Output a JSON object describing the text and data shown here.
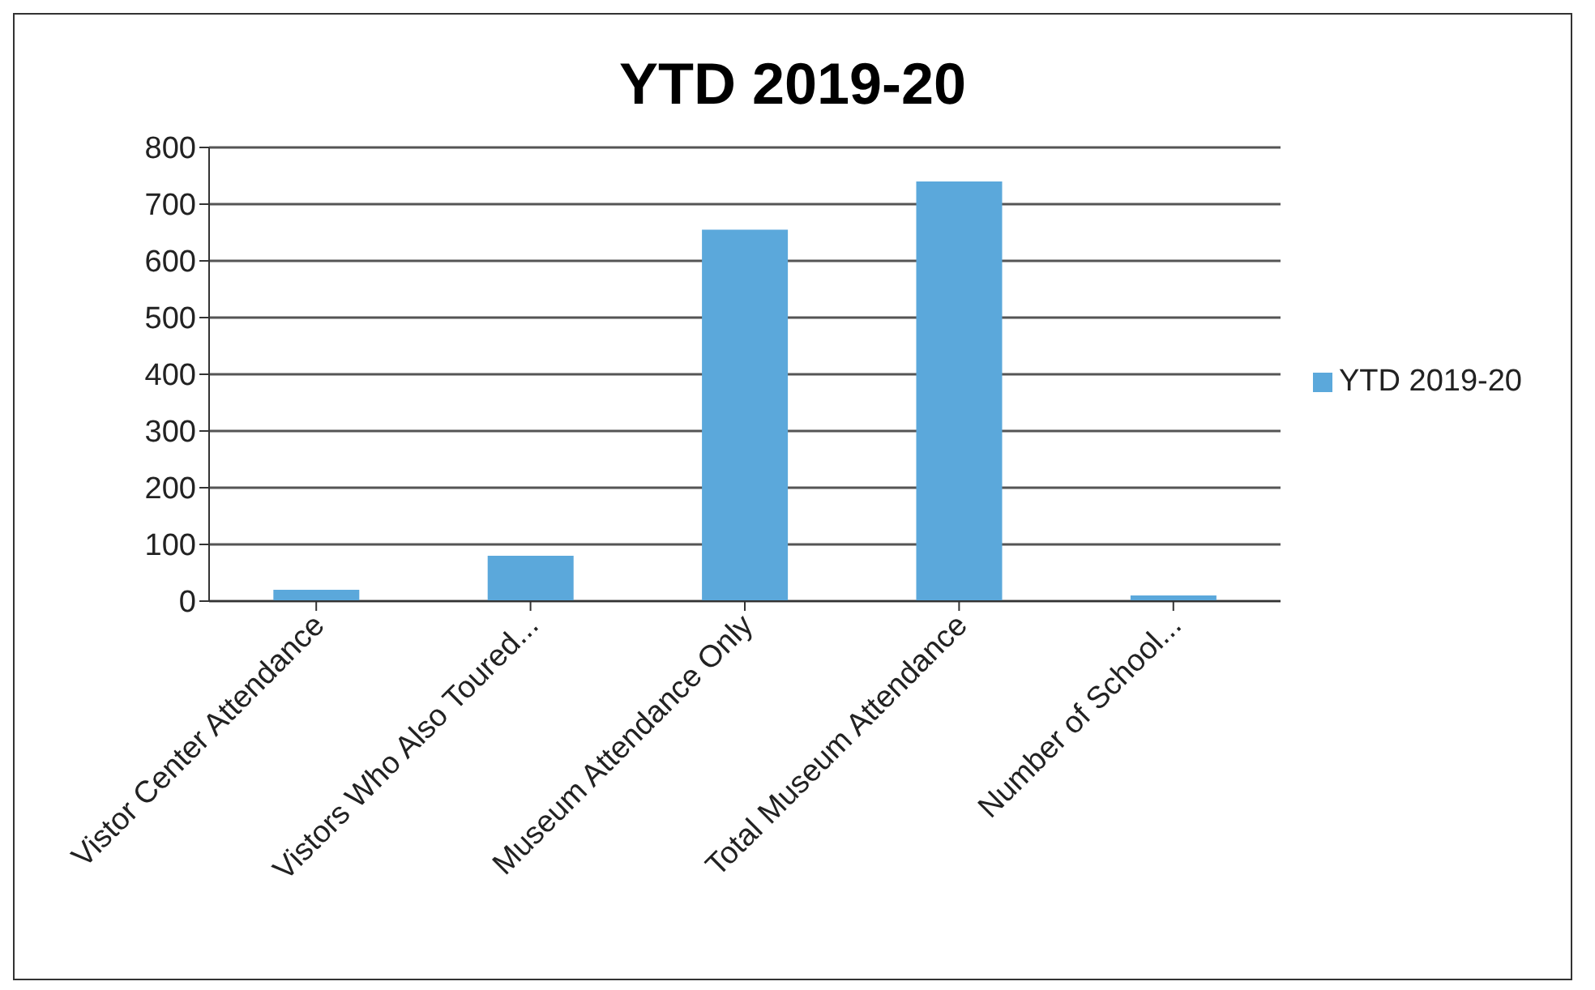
{
  "chart_data": {
    "type": "bar",
    "title": "YTD 2019-20",
    "categories": [
      "Vistor Center Attendance",
      "Vistors Who Also Toured...",
      "Museum Attendance Only",
      "Total Museum Attendance",
      "Number of School..."
    ],
    "series": [
      {
        "name": "YTD 2019-20",
        "color": "#5ba8db",
        "values": [
          20,
          80,
          655,
          740,
          10
        ]
      }
    ],
    "ylim": [
      0,
      800
    ],
    "yticks": [
      0,
      100,
      200,
      300,
      400,
      500,
      600,
      700,
      800
    ],
    "grid": "y",
    "legend": "right"
  }
}
